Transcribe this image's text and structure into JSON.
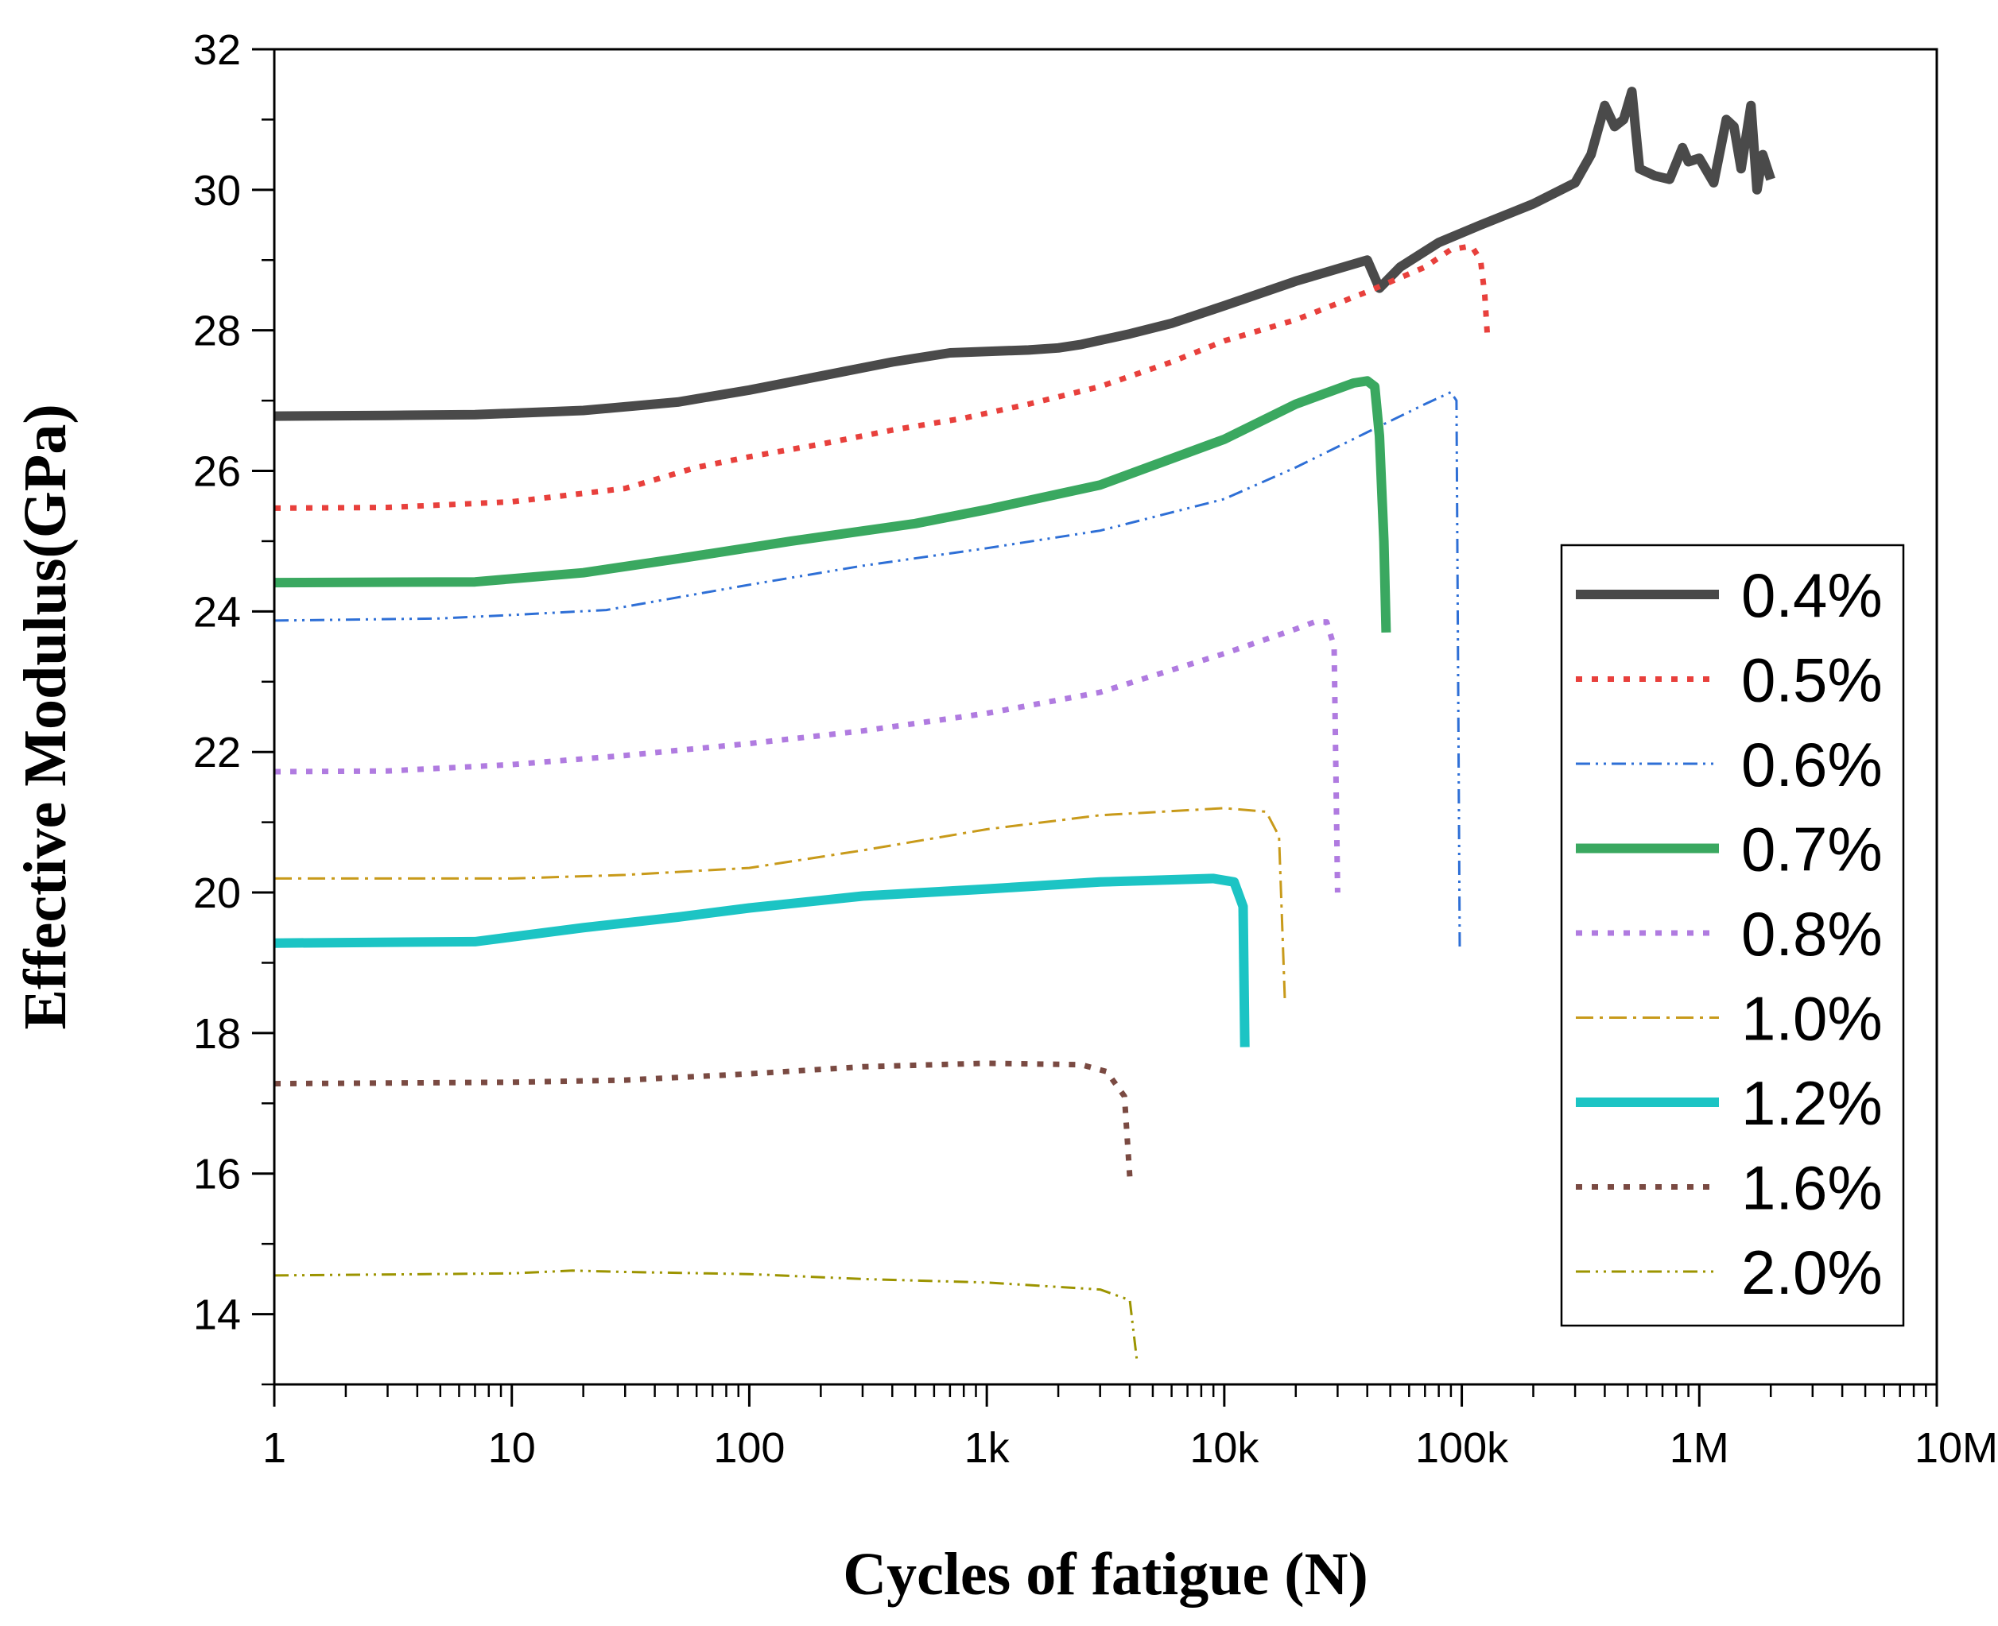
{
  "chart_data": {
    "type": "line",
    "title": "",
    "xlabel": "Cycles of fatigue (N)",
    "ylabel": "Effective Modulus(GPa)",
    "xscale": "log",
    "xlim": [
      1,
      10000000
    ],
    "ylim": [
      13,
      32
    ],
    "x_ticks": [
      {
        "value": 1,
        "label": "1"
      },
      {
        "value": 10,
        "label": "10"
      },
      {
        "value": 100,
        "label": "100"
      },
      {
        "value": 1000,
        "label": "1k"
      },
      {
        "value": 10000,
        "label": "10k"
      },
      {
        "value": 100000,
        "label": "100k"
      },
      {
        "value": 1000000,
        "label": "1M"
      },
      {
        "value": 10000000,
        "label": "10M"
      }
    ],
    "y_ticks": [
      {
        "value": 14,
        "label": "14"
      },
      {
        "value": 16,
        "label": "16"
      },
      {
        "value": 18,
        "label": "18"
      },
      {
        "value": 20,
        "label": "20"
      },
      {
        "value": 22,
        "label": "22"
      },
      {
        "value": 24,
        "label": "24"
      },
      {
        "value": 26,
        "label": "26"
      },
      {
        "value": 28,
        "label": "28"
      },
      {
        "value": 30,
        "label": "30"
      },
      {
        "value": 32,
        "label": "32"
      }
    ],
    "grid": false,
    "legend_position": "right",
    "series": [
      {
        "name": "0.4%",
        "color": "#4a4a4a",
        "style": "solid",
        "weight": "thick",
        "points": [
          [
            1,
            26.78
          ],
          [
            3,
            26.79
          ],
          [
            7,
            26.8
          ],
          [
            20,
            26.86
          ],
          [
            50,
            26.98
          ],
          [
            100,
            27.15
          ],
          [
            200,
            27.35
          ],
          [
            400,
            27.55
          ],
          [
            700,
            27.68
          ],
          [
            1000,
            27.7
          ],
          [
            1500,
            27.72
          ],
          [
            2000,
            27.75
          ],
          [
            2500,
            27.8
          ],
          [
            4000,
            27.95
          ],
          [
            6000,
            28.1
          ],
          [
            10000,
            28.35
          ],
          [
            20000,
            28.7
          ],
          [
            40000,
            29.0
          ],
          [
            45000,
            28.6
          ],
          [
            55000,
            28.9
          ],
          [
            80000,
            29.25
          ],
          [
            120000,
            29.5
          ],
          [
            200000,
            29.8
          ],
          [
            300000,
            30.1
          ],
          [
            350000,
            30.5
          ],
          [
            400000,
            31.2
          ],
          [
            440000,
            30.9
          ],
          [
            480000,
            31.0
          ],
          [
            520000,
            31.4
          ],
          [
            560000,
            30.3
          ],
          [
            650000,
            30.2
          ],
          [
            750000,
            30.15
          ],
          [
            850000,
            30.6
          ],
          [
            900000,
            30.4
          ],
          [
            1000000,
            30.45
          ],
          [
            1150000,
            30.1
          ],
          [
            1300000,
            31.0
          ],
          [
            1400000,
            30.9
          ],
          [
            1500000,
            30.3
          ],
          [
            1650000,
            31.2
          ],
          [
            1750000,
            30.0
          ],
          [
            1850000,
            30.5
          ],
          [
            2000000,
            30.15
          ]
        ]
      },
      {
        "name": "0.5%",
        "color": "#e8403c",
        "style": "dot",
        "weight": "medium",
        "points": [
          [
            1,
            25.47
          ],
          [
            3,
            25.48
          ],
          [
            10,
            25.56
          ],
          [
            30,
            25.75
          ],
          [
            60,
            26.05
          ],
          [
            100,
            26.2
          ],
          [
            200,
            26.38
          ],
          [
            400,
            26.58
          ],
          [
            800,
            26.75
          ],
          [
            1500,
            26.95
          ],
          [
            3000,
            27.2
          ],
          [
            6000,
            27.55
          ],
          [
            10000,
            27.85
          ],
          [
            20000,
            28.15
          ],
          [
            40000,
            28.55
          ],
          [
            70000,
            28.9
          ],
          [
            90000,
            29.15
          ],
          [
            110000,
            29.2
          ],
          [
            120000,
            29.0
          ],
          [
            125000,
            28.5
          ],
          [
            128000,
            27.95
          ]
        ]
      },
      {
        "name": "0.6%",
        "color": "#2e6fd6",
        "style": "dashdotdot",
        "weight": "thin",
        "points": [
          [
            1,
            23.87
          ],
          [
            5,
            23.9
          ],
          [
            10,
            23.95
          ],
          [
            25,
            24.02
          ],
          [
            50,
            24.2
          ],
          [
            100,
            24.38
          ],
          [
            300,
            24.65
          ],
          [
            1000,
            24.9
          ],
          [
            3000,
            25.15
          ],
          [
            10000,
            25.6
          ],
          [
            20000,
            26.05
          ],
          [
            40000,
            26.55
          ],
          [
            70000,
            26.95
          ],
          [
            90000,
            27.12
          ],
          [
            95000,
            27.0
          ],
          [
            98000,
            19.2
          ]
        ]
      },
      {
        "name": "0.7%",
        "color": "#3aa860",
        "style": "solid",
        "weight": "thick",
        "points": [
          [
            1,
            24.41
          ],
          [
            7,
            24.42
          ],
          [
            20,
            24.55
          ],
          [
            50,
            24.75
          ],
          [
            150,
            25.0
          ],
          [
            500,
            25.25
          ],
          [
            1000,
            25.45
          ],
          [
            3000,
            25.8
          ],
          [
            10000,
            26.45
          ],
          [
            20000,
            26.95
          ],
          [
            35000,
            27.25
          ],
          [
            40000,
            27.28
          ],
          [
            43000,
            27.2
          ],
          [
            45000,
            26.5
          ],
          [
            47000,
            25.0
          ],
          [
            48000,
            23.7
          ]
        ]
      },
      {
        "name": "0.8%",
        "color": "#b07be0",
        "style": "dot",
        "weight": "medium",
        "points": [
          [
            1,
            21.72
          ],
          [
            3,
            21.73
          ],
          [
            10,
            21.82
          ],
          [
            30,
            21.95
          ],
          [
            100,
            22.12
          ],
          [
            300,
            22.3
          ],
          [
            1000,
            22.55
          ],
          [
            3000,
            22.85
          ],
          [
            10000,
            23.4
          ],
          [
            20000,
            23.75
          ],
          [
            24000,
            23.85
          ],
          [
            27000,
            23.85
          ],
          [
            29000,
            23.5
          ],
          [
            30000,
            20.0
          ]
        ]
      },
      {
        "name": "1.0%",
        "color": "#c89a1a",
        "style": "dashdot",
        "weight": "thin",
        "points": [
          [
            1,
            20.2
          ],
          [
            10,
            20.2
          ],
          [
            30,
            20.25
          ],
          [
            100,
            20.35
          ],
          [
            300,
            20.6
          ],
          [
            1000,
            20.9
          ],
          [
            3000,
            21.1
          ],
          [
            10000,
            21.2
          ],
          [
            15000,
            21.15
          ],
          [
            17000,
            20.8
          ],
          [
            18000,
            18.45
          ]
        ]
      },
      {
        "name": "1.2%",
        "color": "#1cc4c4",
        "style": "solid",
        "weight": "thick",
        "points": [
          [
            1,
            19.28
          ],
          [
            7,
            19.3
          ],
          [
            20,
            19.5
          ],
          [
            50,
            19.65
          ],
          [
            100,
            19.78
          ],
          [
            300,
            19.95
          ],
          [
            1000,
            20.05
          ],
          [
            3000,
            20.15
          ],
          [
            9000,
            20.2
          ],
          [
            11000,
            20.15
          ],
          [
            12000,
            19.8
          ],
          [
            12200,
            17.8
          ]
        ]
      },
      {
        "name": "1.6%",
        "color": "#7a4a42",
        "style": "dot",
        "weight": "medium",
        "points": [
          [
            1,
            17.28
          ],
          [
            10,
            17.3
          ],
          [
            30,
            17.33
          ],
          [
            100,
            17.42
          ],
          [
            300,
            17.52
          ],
          [
            1000,
            17.57
          ],
          [
            2500,
            17.55
          ],
          [
            3200,
            17.45
          ],
          [
            3800,
            17.1
          ],
          [
            4000,
            15.95
          ]
        ]
      },
      {
        "name": "2.0%",
        "color": "#9c9400",
        "style": "dashdotdot",
        "weight": "thin",
        "points": [
          [
            1,
            14.55
          ],
          [
            10,
            14.58
          ],
          [
            18,
            14.62
          ],
          [
            30,
            14.6
          ],
          [
            100,
            14.57
          ],
          [
            300,
            14.5
          ],
          [
            1000,
            14.45
          ],
          [
            3000,
            14.35
          ],
          [
            4000,
            14.2
          ],
          [
            4300,
            13.3
          ]
        ]
      }
    ]
  }
}
